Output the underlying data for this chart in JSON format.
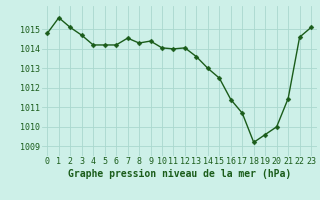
{
  "x": [
    0,
    1,
    2,
    3,
    4,
    5,
    6,
    7,
    8,
    9,
    10,
    11,
    12,
    13,
    14,
    15,
    16,
    17,
    18,
    19,
    20,
    21,
    22,
    23
  ],
  "y": [
    1014.8,
    1015.6,
    1015.1,
    1014.7,
    1014.2,
    1014.2,
    1014.2,
    1014.55,
    1014.3,
    1014.4,
    1014.05,
    1014.0,
    1014.05,
    1013.6,
    1013.0,
    1012.5,
    1011.4,
    1010.7,
    1009.2,
    1009.6,
    1010.0,
    1011.45,
    1014.6,
    1015.1
  ],
  "line_color": "#1a5c1a",
  "marker": "D",
  "marker_size": 2.5,
  "line_width": 1.0,
  "bg_color": "#cdf0e8",
  "grid_color": "#aad8ce",
  "xlabel": "Graphe pression niveau de la mer (hPa)",
  "xlabel_color": "#1a5c1a",
  "xlabel_fontsize": 7,
  "tick_color": "#1a5c1a",
  "tick_fontsize": 6,
  "ylim": [
    1008.5,
    1016.2
  ],
  "xlim": [
    -0.5,
    23.5
  ],
  "yticks": [
    1009,
    1010,
    1011,
    1012,
    1013,
    1014,
    1015
  ],
  "xticks": [
    0,
    1,
    2,
    3,
    4,
    5,
    6,
    7,
    8,
    9,
    10,
    11,
    12,
    13,
    14,
    15,
    16,
    17,
    18,
    19,
    20,
    21,
    22,
    23
  ]
}
